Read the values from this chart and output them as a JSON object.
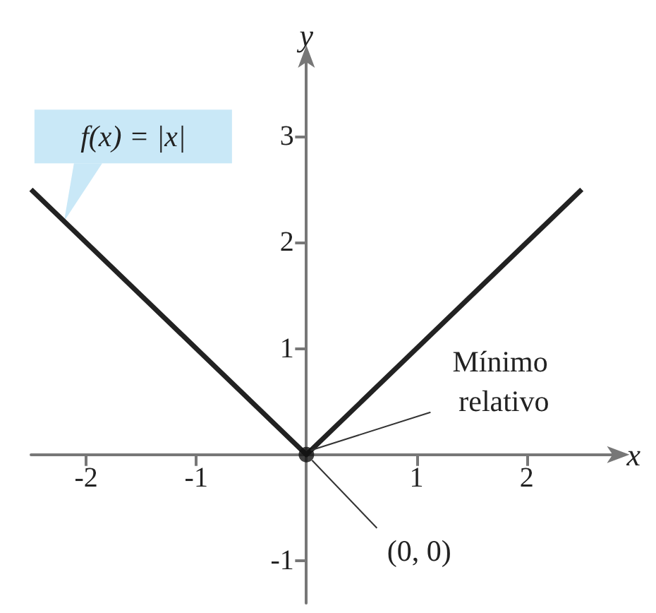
{
  "chart_data": {
    "type": "line",
    "xlabel": "x",
    "ylabel": "y",
    "series": [
      {
        "color": "#222222",
        "x": [
          -2.5,
          0,
          2.5
        ],
        "values": [
          2.5,
          0,
          2.5
        ],
        "marker": "none"
      },
      {
        "type": "scatter",
        "color": "#111111",
        "x": [
          0
        ],
        "values": [
          0
        ],
        "marker": "circle"
      }
    ],
    "xlim": [
      -2.5,
      2.78
    ],
    "ylim": [
      -1.4,
      3.7
    ],
    "xticks": [
      -2,
      -1,
      1,
      2
    ],
    "yticks": [
      -1,
      1,
      2,
      3
    ],
    "grid": false,
    "annotations": [
      "f(x) = |x|",
      {
        "text": "Mínimo relativo",
        "x": 0,
        "y": 0
      },
      {
        "text": "(0, 0)",
        "x": 0,
        "y": 0
      }
    ]
  }
}
